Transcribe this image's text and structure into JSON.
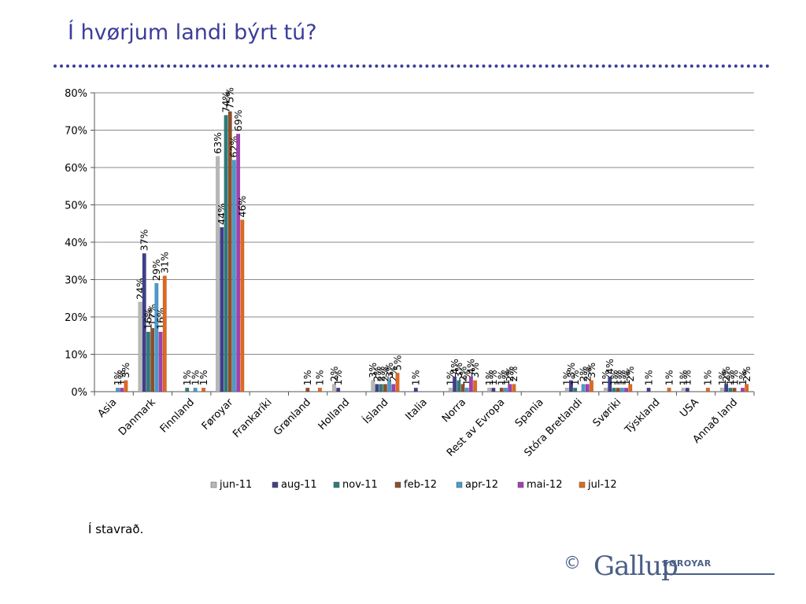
{
  "page": {
    "title": "Í hvørjum landi býrt tú?",
    "footnote": "Í stavrað.",
    "brand": {
      "copyright": "©",
      "name": "Gallup",
      "sub": "FØROYAR"
    }
  },
  "chart_data": {
    "type": "bar",
    "title": "",
    "xlabel": "",
    "ylabel": "",
    "ylim": [
      0,
      80
    ],
    "yticks": [
      "0%",
      "10%",
      "20%",
      "30%",
      "40%",
      "50%",
      "60%",
      "70%",
      "80%"
    ],
    "grid": true,
    "legend": "bottom",
    "categories": [
      "Asia",
      "Danmark",
      "Finnland",
      "Føroyar",
      "Frankaríki",
      "Grønland",
      "Holland",
      "Ísland",
      "Italia",
      "Norra",
      "Rest av Evropa",
      "Spania",
      "Stóra Bretlandi",
      "Svøriki",
      "Týskland",
      "USA",
      "Annað land"
    ],
    "series": [
      {
        "name": "jun-11",
        "color": "#b8b8b8",
        "values": [
          null,
          24,
          null,
          63,
          null,
          null,
          2,
          3,
          null,
          1,
          1,
          null,
          1,
          1,
          null,
          1,
          1
        ]
      },
      {
        "name": "aug-11",
        "color": "#3f3f8c",
        "values": [
          null,
          37,
          null,
          44,
          null,
          null,
          1,
          2,
          1,
          4,
          1,
          null,
          3,
          4,
          1,
          1,
          2
        ]
      },
      {
        "name": "nov-11",
        "color": "#2e7a7a",
        "values": [
          null,
          16,
          1,
          74,
          null,
          null,
          null,
          2,
          null,
          3,
          null,
          null,
          1,
          1,
          null,
          null,
          1
        ]
      },
      {
        "name": "feb-12",
        "color": "#8c4f2a",
        "values": [
          null,
          17,
          null,
          75,
          null,
          1,
          null,
          2,
          null,
          2,
          1,
          null,
          null,
          1,
          null,
          null,
          1
        ]
      },
      {
        "name": "apr-12",
        "color": "#4a9acc",
        "values": [
          1,
          29,
          1,
          62,
          null,
          null,
          null,
          3,
          null,
          1,
          1,
          null,
          2,
          1,
          null,
          null,
          null
        ]
      },
      {
        "name": "mai-12",
        "color": "#a040b0",
        "values": [
          1,
          16,
          null,
          69,
          null,
          null,
          null,
          2,
          null,
          4,
          2,
          null,
          2,
          1,
          null,
          null,
          1
        ]
      },
      {
        "name": "jul-12",
        "color": "#e06820",
        "values": [
          3,
          31,
          1,
          46,
          null,
          1,
          null,
          5,
          null,
          3,
          2,
          null,
          3,
          2,
          1,
          1,
          2
        ]
      }
    ]
  }
}
